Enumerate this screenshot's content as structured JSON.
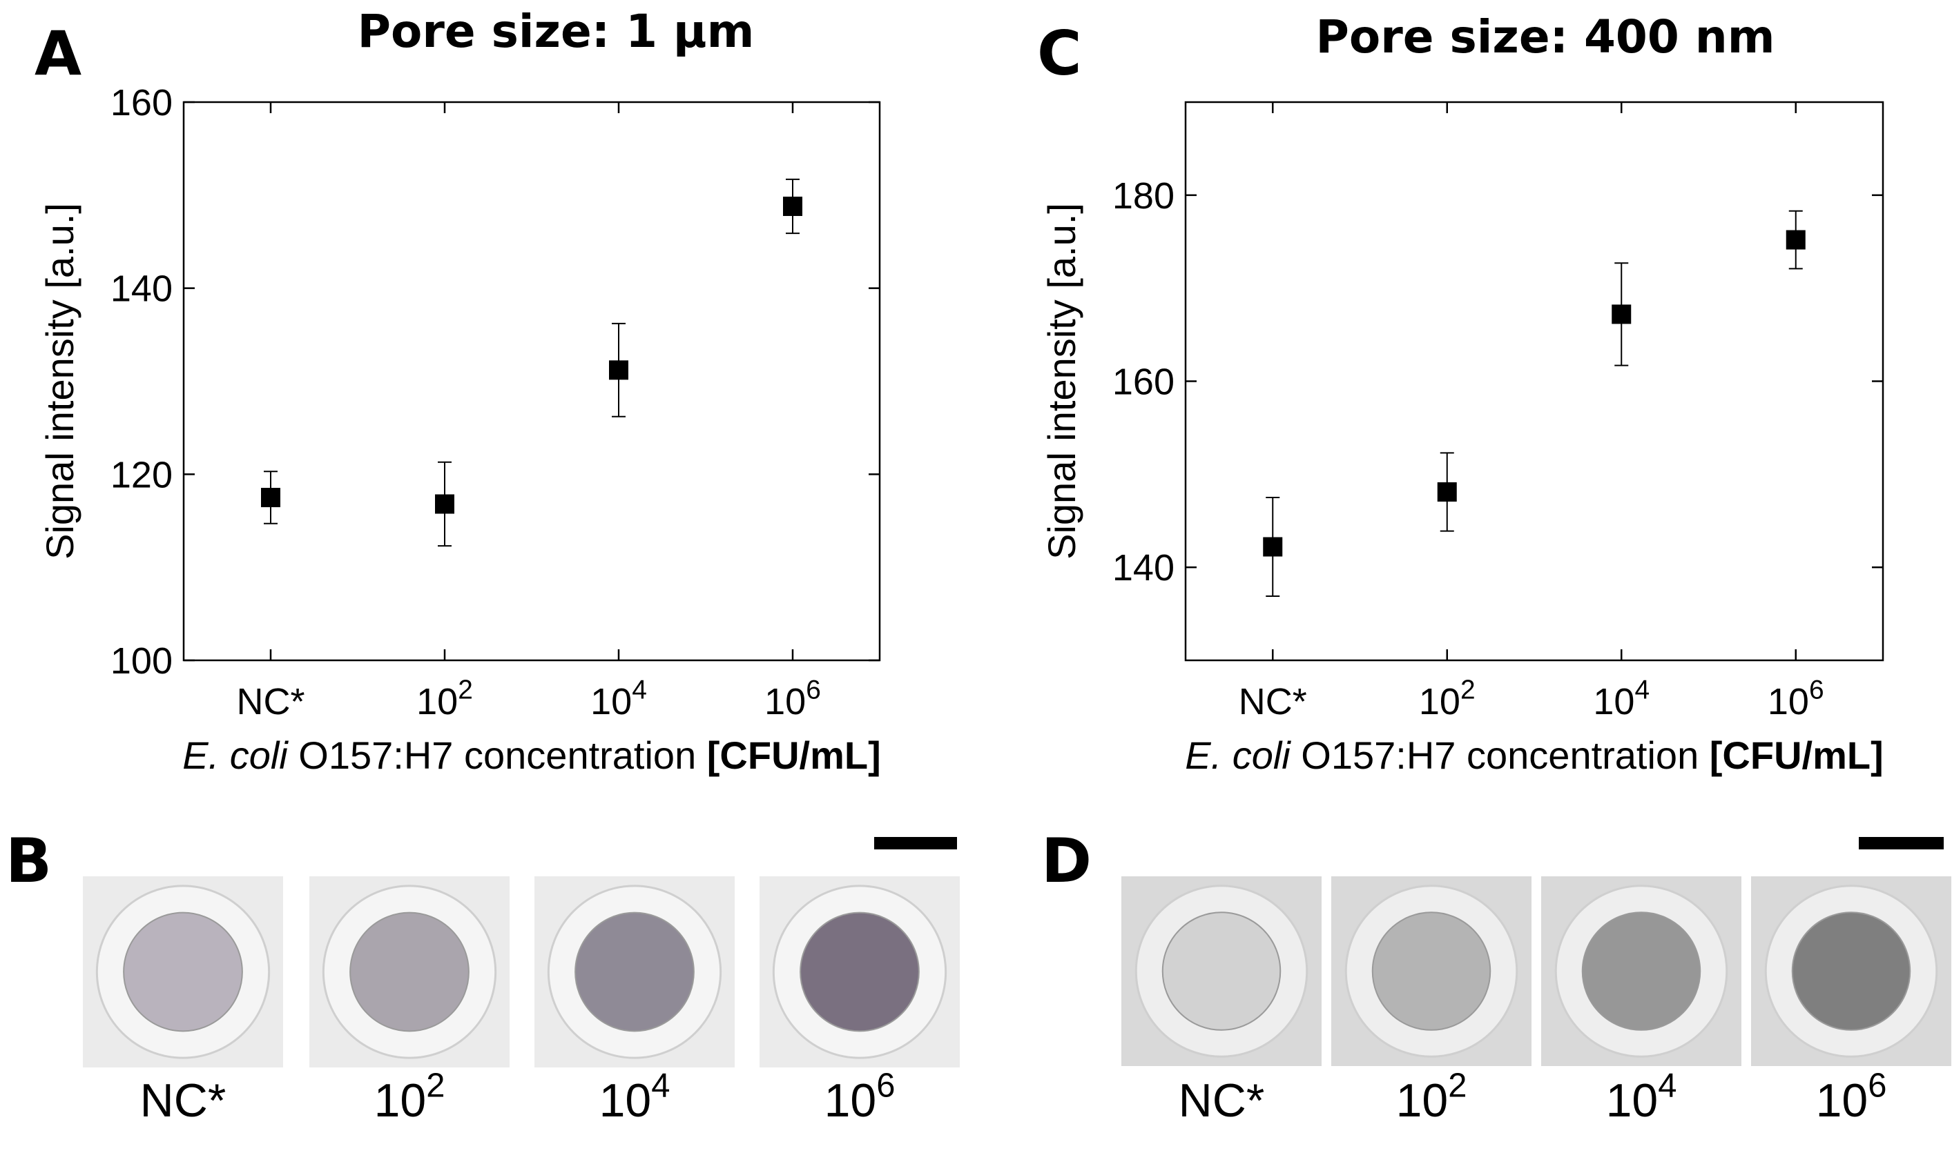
{
  "chart_data": [
    {
      "panel": "A",
      "type": "scatter",
      "title": "Pore size: 1 µm",
      "ylabel": "Signal intensity [a.u.]",
      "xlabel": {
        "species": "E. coli",
        "text": " O157:H7 concentration ",
        "unit": "[CFU/mL]"
      },
      "categories": [
        {
          "base": "NC*",
          "exp": ""
        },
        {
          "base": "10",
          "exp": "2"
        },
        {
          "base": "10",
          "exp": "4"
        },
        {
          "base": "10",
          "exp": "6"
        }
      ],
      "values": [
        117.5,
        116.8,
        131.2,
        148.8
      ],
      "errors": [
        2.8,
        4.5,
        5.0,
        2.9
      ],
      "ylim": [
        100,
        160
      ],
      "yticks": [
        100,
        120,
        140,
        160
      ]
    },
    {
      "panel": "C",
      "type": "scatter",
      "title": "Pore size: 400 nm",
      "ylabel": "Signal intensity [a.u.]",
      "xlabel": {
        "species": "E. coli",
        "text": " O157:H7 concentration ",
        "unit": "[CFU/mL]"
      },
      "categories": [
        {
          "base": "NC*",
          "exp": ""
        },
        {
          "base": "10",
          "exp": "2"
        },
        {
          "base": "10",
          "exp": "4"
        },
        {
          "base": "10",
          "exp": "6"
        }
      ],
      "values": [
        142.2,
        148.1,
        167.2,
        175.2
      ],
      "errors": [
        5.3,
        4.2,
        5.5,
        3.1
      ],
      "ylim": [
        130,
        190
      ],
      "yticks": [
        140,
        160,
        180
      ]
    }
  ],
  "photo_panels": [
    {
      "panel": "B",
      "labels": [
        {
          "base": "NC*",
          "exp": ""
        },
        {
          "base": "10",
          "exp": "2"
        },
        {
          "base": "10",
          "exp": "4"
        },
        {
          "base": "10",
          "exp": "6"
        }
      ],
      "spot_colors": [
        "#b9b3bd",
        "#aaa5ad",
        "#8f8a96",
        "#7a7080"
      ]
    },
    {
      "panel": "D",
      "labels": [
        {
          "base": "NC*",
          "exp": ""
        },
        {
          "base": "10",
          "exp": "2"
        },
        {
          "base": "10",
          "exp": "4"
        },
        {
          "base": "10",
          "exp": "6"
        }
      ],
      "spot_colors": [
        "#d2d2d2",
        "#b4b4b4",
        "#979797",
        "#7f7f7f"
      ]
    }
  ]
}
